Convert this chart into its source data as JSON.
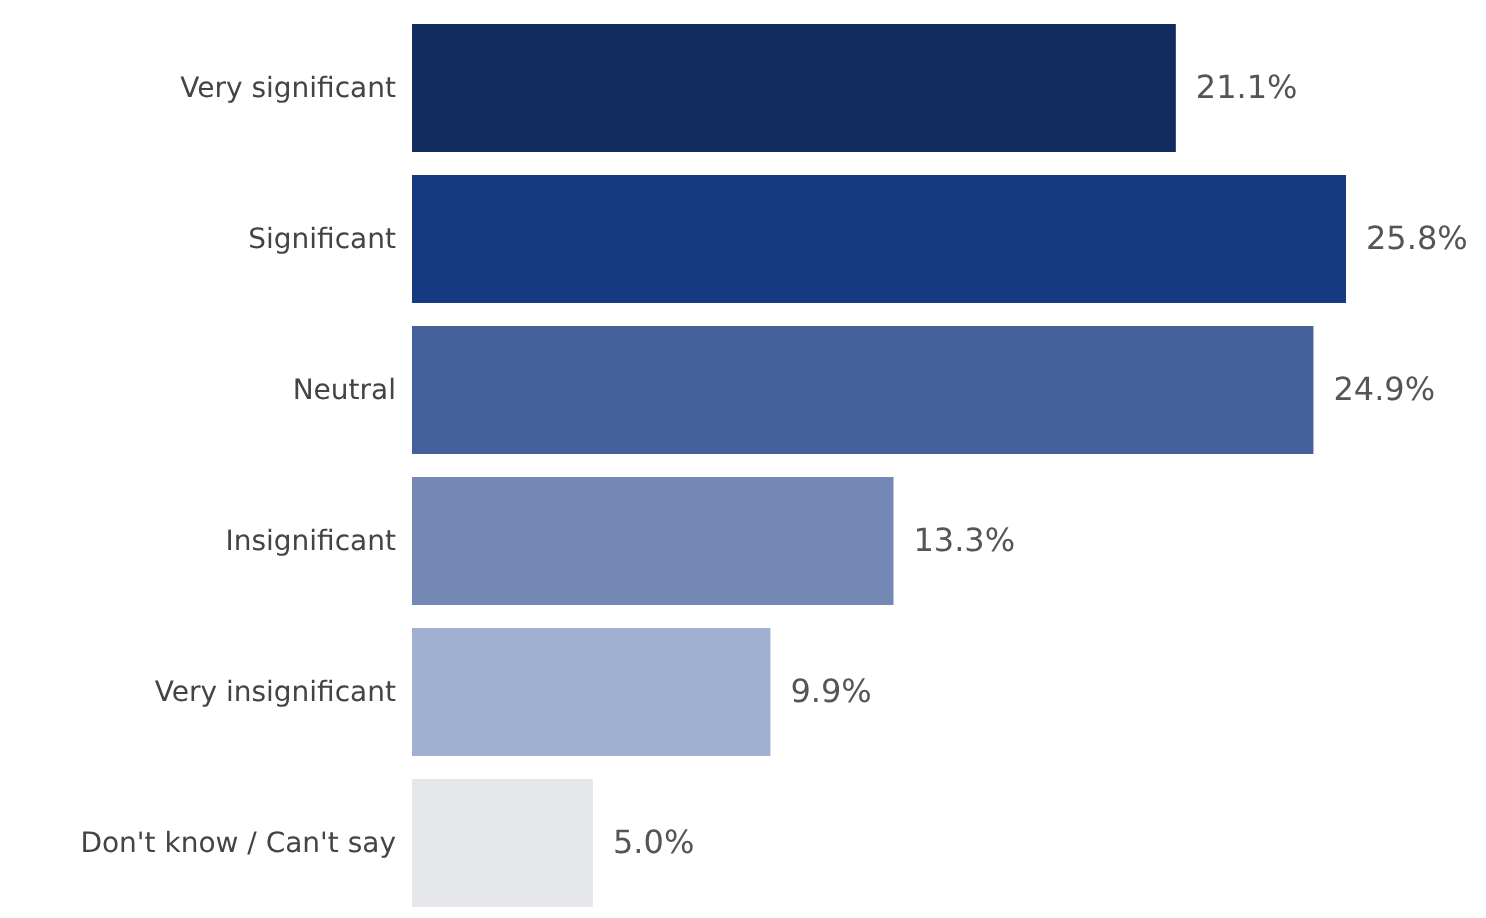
{
  "chart_data": {
    "type": "bar",
    "orientation": "horizontal",
    "categories": [
      "Very significant",
      "Significant",
      "Neutral",
      "Insignificant",
      "Very insignificant",
      "Don't know / Can't say"
    ],
    "values": [
      21.1,
      25.8,
      24.9,
      13.3,
      9.9,
      5.0
    ],
    "value_labels": [
      "21.1%",
      "25.8%",
      "24.9%",
      "13.3%",
      "9.9%",
      "5.0%"
    ],
    "colors": [
      "#132c60",
      "#163a80",
      "#44609a",
      "#7388b4",
      "#a0b0d0",
      "#e6e7ea"
    ]
  }
}
